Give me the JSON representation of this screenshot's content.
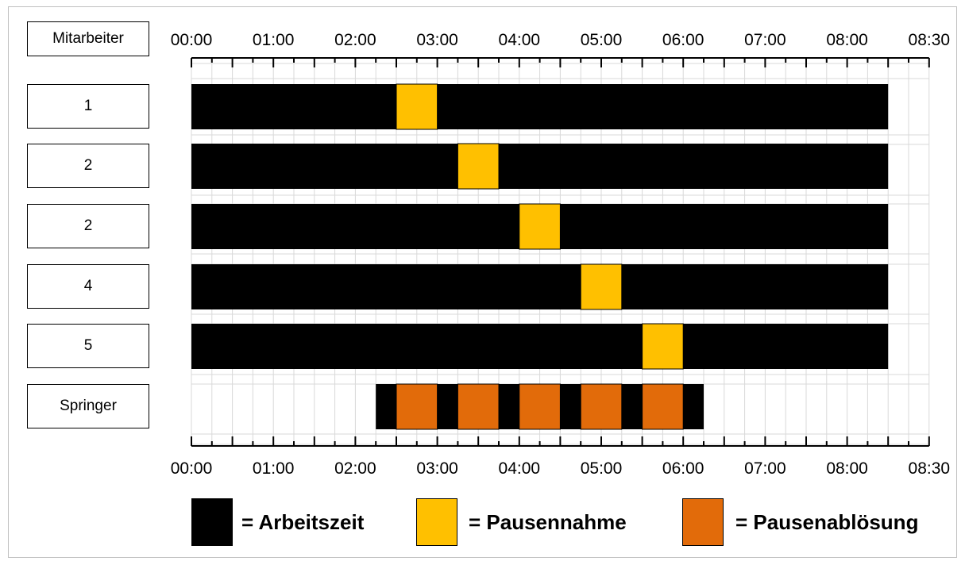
{
  "chart_data": {
    "type": "gantt",
    "header_label": "Mitarbeiter",
    "axis": {
      "ticks": [
        "00:00",
        "01:00",
        "02:00",
        "03:00",
        "04:00",
        "05:00",
        "06:00",
        "07:00",
        "08:00",
        "08:30"
      ],
      "range_hours": [
        0,
        8.5
      ]
    },
    "rows": [
      {
        "label": "1",
        "segments": [
          {
            "type": "work",
            "start": 0.0,
            "end": 2.5
          },
          {
            "type": "pause",
            "start": 2.5,
            "end": 3.0
          },
          {
            "type": "work",
            "start": 3.0,
            "end": 8.5
          }
        ]
      },
      {
        "label": "2",
        "segments": [
          {
            "type": "work",
            "start": 0.0,
            "end": 3.25
          },
          {
            "type": "pause",
            "start": 3.25,
            "end": 3.75
          },
          {
            "type": "work",
            "start": 3.75,
            "end": 8.5
          }
        ]
      },
      {
        "label": "2",
        "segments": [
          {
            "type": "work",
            "start": 0.0,
            "end": 4.0
          },
          {
            "type": "pause",
            "start": 4.0,
            "end": 4.5
          },
          {
            "type": "work",
            "start": 4.5,
            "end": 8.5
          }
        ]
      },
      {
        "label": "4",
        "segments": [
          {
            "type": "work",
            "start": 0.0,
            "end": 4.75
          },
          {
            "type": "pause",
            "start": 4.75,
            "end": 5.25
          },
          {
            "type": "work",
            "start": 5.25,
            "end": 8.5
          }
        ]
      },
      {
        "label": "5",
        "segments": [
          {
            "type": "work",
            "start": 0.0,
            "end": 5.5
          },
          {
            "type": "pause",
            "start": 5.5,
            "end": 6.0
          },
          {
            "type": "work",
            "start": 6.0,
            "end": 8.5
          }
        ]
      },
      {
        "label": "Springer",
        "segments": [
          {
            "type": "work",
            "start": 2.25,
            "end": 2.5
          },
          {
            "type": "relief",
            "start": 2.5,
            "end": 3.0
          },
          {
            "type": "work",
            "start": 3.0,
            "end": 3.25
          },
          {
            "type": "relief",
            "start": 3.25,
            "end": 3.75
          },
          {
            "type": "work",
            "start": 3.75,
            "end": 4.0
          },
          {
            "type": "relief",
            "start": 4.0,
            "end": 4.5
          },
          {
            "type": "work",
            "start": 4.5,
            "end": 4.75
          },
          {
            "type": "relief",
            "start": 4.75,
            "end": 5.25
          },
          {
            "type": "work",
            "start": 5.25,
            "end": 5.5
          },
          {
            "type": "relief",
            "start": 5.5,
            "end": 6.0
          },
          {
            "type": "work",
            "start": 6.0,
            "end": 6.25
          }
        ]
      }
    ],
    "legend": [
      {
        "type": "work",
        "label": "= Arbeitszeit",
        "color": "#000000"
      },
      {
        "type": "pause",
        "label": "= Pausennahme",
        "color": "#FFC000"
      },
      {
        "type": "relief",
        "label": "= Pausenablösung",
        "color": "#E26B0A"
      }
    ],
    "colors": {
      "work": "#000000",
      "pause": "#FFC000",
      "relief": "#E26B0A"
    },
    "grid": true
  }
}
